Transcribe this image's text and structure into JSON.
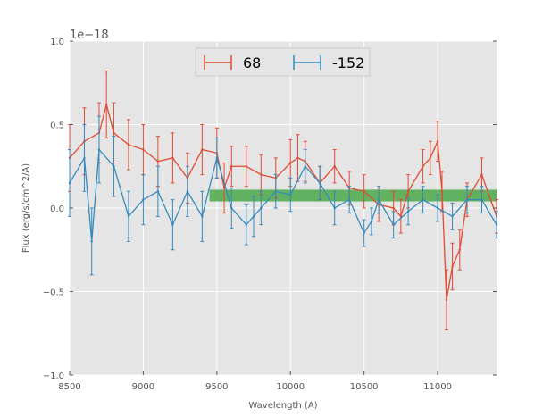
{
  "chart_data": {
    "type": "line",
    "title": "",
    "xlabel": "Wavelength (A)",
    "ylabel": "Flux (erg/s/cm^2/A)",
    "y_offset_label": "1e−18",
    "xlim": [
      8500,
      11400
    ],
    "ylim": [
      -1.0,
      1.0
    ],
    "xticks": [
      8500,
      9000,
      9500,
      10000,
      10500,
      11000
    ],
    "xtick_labels": [
      "8500",
      "9000",
      "9500",
      "10000",
      "10500",
      "11000"
    ],
    "yticks": [
      -1.0,
      -0.5,
      0.0,
      0.5,
      1.0
    ],
    "ytick_labels": [
      "−1.0",
      "−0.5",
      "0.0",
      "0.5",
      "1.0"
    ],
    "grid": true,
    "legend_position": "top-center",
    "band": {
      "x_start": 9450,
      "x_end": 11400,
      "y_low": 0.04,
      "y_high": 0.11,
      "color": "#4aa84a"
    },
    "series": [
      {
        "name": "68",
        "color": "#e24a33",
        "x": [
          8500,
          8600,
          8700,
          8750,
          8800,
          8900,
          9000,
          9100,
          9200,
          9300,
          9400,
          9500,
          9550,
          9600,
          9700,
          9800,
          9900,
          10000,
          10050,
          10100,
          10200,
          10300,
          10400,
          10500,
          10600,
          10700,
          10750,
          10800,
          10900,
          10950,
          11000,
          11030,
          11060,
          11100,
          11150,
          11200,
          11300,
          11400
        ],
        "values": [
          0.3,
          0.4,
          0.45,
          0.62,
          0.45,
          0.38,
          0.35,
          0.28,
          0.3,
          0.18,
          0.35,
          0.33,
          0.12,
          0.25,
          0.25,
          0.2,
          0.18,
          0.27,
          0.3,
          0.28,
          0.15,
          0.25,
          0.12,
          0.1,
          0.02,
          0.0,
          -0.05,
          0.1,
          0.25,
          0.3,
          0.4,
          0.1,
          -0.55,
          -0.35,
          -0.25,
          0.05,
          0.2,
          -0.05
        ],
        "error": [
          0.2,
          0.2,
          0.18,
          0.2,
          0.18,
          0.15,
          0.15,
          0.15,
          0.15,
          0.15,
          0.15,
          0.15,
          0.15,
          0.12,
          0.12,
          0.12,
          0.12,
          0.14,
          0.14,
          0.12,
          0.1,
          0.1,
          0.1,
          0.1,
          0.1,
          0.1,
          0.1,
          0.1,
          0.1,
          0.1,
          0.12,
          0.12,
          0.18,
          0.14,
          0.12,
          0.1,
          0.1,
          0.1
        ]
      },
      {
        "name": "-152",
        "color": "#348abd",
        "x": [
          8500,
          8600,
          8650,
          8700,
          8800,
          8900,
          9000,
          9100,
          9200,
          9300,
          9400,
          9500,
          9600,
          9700,
          9750,
          9800,
          9900,
          10000,
          10100,
          10200,
          10300,
          10400,
          10500,
          10550,
          10600,
          10700,
          10800,
          10900,
          11000,
          11100,
          11200,
          11300,
          11400
        ],
        "values": [
          0.15,
          0.3,
          -0.2,
          0.35,
          0.25,
          -0.05,
          0.05,
          0.1,
          -0.1,
          0.1,
          -0.05,
          0.3,
          0.0,
          -0.1,
          -0.05,
          0.0,
          0.1,
          0.08,
          0.25,
          0.15,
          0.0,
          0.05,
          -0.15,
          -0.08,
          0.05,
          -0.1,
          -0.02,
          0.05,
          0.0,
          -0.05,
          0.05,
          0.05,
          -0.1
        ],
        "error": [
          0.2,
          0.2,
          0.2,
          0.2,
          0.18,
          0.15,
          0.15,
          0.15,
          0.15,
          0.15,
          0.15,
          0.12,
          0.12,
          0.12,
          0.12,
          0.1,
          0.1,
          0.1,
          0.1,
          0.1,
          0.1,
          0.08,
          0.08,
          0.08,
          0.08,
          0.08,
          0.08,
          0.08,
          0.08,
          0.08,
          0.08,
          0.08,
          0.08
        ]
      }
    ]
  }
}
